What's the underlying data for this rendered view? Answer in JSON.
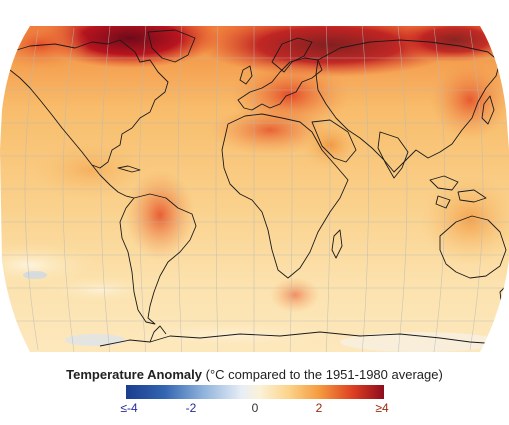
{
  "map": {
    "projection": "robinson",
    "colors": {
      "cold_extreme": "#1a3d8f",
      "cold": "#4f86c6",
      "neutral": "#f4f4f4",
      "mild_warm": "#fbe3a8",
      "warm": "#f6b25c",
      "hot": "#ea5a2a",
      "hot_extreme": "#8e0c1e",
      "coastline": "#1a1a1a",
      "graticule": "#b8b8b8"
    }
  },
  "legend": {
    "title": "Temperature Anomaly",
    "subtitle": "(°C compared to the 1951-1980 average)",
    "ticks": [
      {
        "label": "≤-4",
        "value": -4
      },
      {
        "label": "-2",
        "value": -2
      },
      {
        "label": "0",
        "value": 0
      },
      {
        "label": "2",
        "value": 2
      },
      {
        "label": "≥4",
        "value": 4
      }
    ],
    "range": [
      -4,
      4
    ]
  }
}
